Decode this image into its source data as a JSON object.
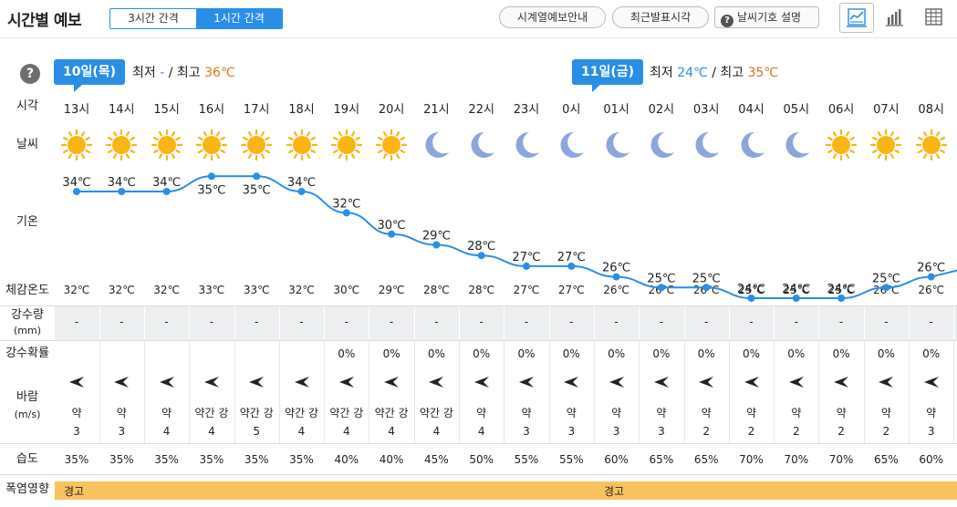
{
  "header": {
    "title": "시간별 예보",
    "interval_3h": "3시간 간격",
    "interval_1h": "1시간 간격",
    "btn_series": "시계열예보안내",
    "btn_recent": "최근발표시각",
    "btn_legend": "날씨기호 설명",
    "active_view": "chart"
  },
  "days": [
    {
      "tag": "10일(목)",
      "min_label": "최저",
      "min": "-",
      "sep": "/",
      "max_label": "최고",
      "max": "36℃"
    },
    {
      "tag": "11일(금)",
      "min_label": "최저",
      "min": "24℃",
      "sep": "/",
      "max_label": "최고",
      "max": "35℃"
    }
  ],
  "row_labels": {
    "time": "시각",
    "weather": "날씨",
    "temp": "기온",
    "feels": "체감온도",
    "rain_amount": "강수량",
    "rain_unit": "(mm)",
    "rain_prob": "강수확률",
    "wind": "바람",
    "wind_unit": "(m/s)",
    "humidity": "습도",
    "heat": "폭염영향"
  },
  "hours": [
    "13시",
    "14시",
    "15시",
    "16시",
    "17시",
    "18시",
    "19시",
    "20시",
    "21시",
    "22시",
    "23시",
    "0시",
    "01시",
    "02시",
    "03시",
    "04시",
    "05시",
    "06시",
    "07시",
    "08시"
  ],
  "weather": [
    "sun",
    "sun",
    "sun",
    "sun",
    "sun",
    "sun",
    "sun",
    "sun",
    "moon",
    "moon",
    "moon",
    "moon",
    "moon",
    "moon",
    "moon",
    "moon",
    "moon",
    "sun",
    "sun",
    "sun"
  ],
  "temps": [
    "34℃",
    "34℃",
    "34℃",
    "35℃",
    "35℃",
    "34℃",
    "32℃",
    "30℃",
    "29℃",
    "28℃",
    "27℃",
    "27℃",
    "26℃",
    "25℃",
    "25℃",
    "24℃",
    "24℃",
    "24℃",
    "25℃",
    "26℃"
  ],
  "temp_values": [
    34,
    34,
    34,
    35,
    35,
    34,
    32,
    30,
    29,
    28,
    27,
    27,
    26,
    25,
    25,
    24,
    24,
    24,
    25,
    26
  ],
  "feels": [
    "32℃",
    "32℃",
    "32℃",
    "33℃",
    "33℃",
    "32℃",
    "30℃",
    "29℃",
    "28℃",
    "28℃",
    "27℃",
    "27℃",
    "26℃",
    "26℃",
    "26℃",
    "25℃",
    "25℃",
    "25℃",
    "26℃",
    "26℃"
  ],
  "rain_amount": [
    "-",
    "-",
    "-",
    "-",
    "-",
    "-",
    "-",
    "-",
    "-",
    "-",
    "-",
    "-",
    "-",
    "-",
    "-",
    "-",
    "-",
    "-",
    "-",
    "-"
  ],
  "rain_prob": [
    "",
    "",
    "",
    "",
    "",
    "",
    "0%",
    "0%",
    "0%",
    "0%",
    "0%",
    "0%",
    "0%",
    "0%",
    "0%",
    "0%",
    "0%",
    "0%",
    "0%",
    "0%"
  ],
  "wind_dir": [
    "W",
    "W",
    "W",
    "W",
    "W",
    "W",
    "W",
    "W",
    "W",
    "W",
    "W",
    "W",
    "W",
    "W",
    "W",
    "W",
    "W",
    "W",
    "W",
    "W"
  ],
  "wind_desc": [
    "약",
    "약",
    "약",
    "약간 강",
    "약간 강",
    "약간 강",
    "약간 강",
    "약간 강",
    "약간 강",
    "약",
    "약",
    "약",
    "약",
    "약",
    "약",
    "약",
    "약",
    "약",
    "약",
    "약"
  ],
  "wind_speed": [
    "3",
    "3",
    "4",
    "4",
    "5",
    "4",
    "4",
    "4",
    "4",
    "4",
    "3",
    "3",
    "3",
    "3",
    "2",
    "2",
    "2",
    "2",
    "2",
    "3"
  ],
  "humidity": [
    "35%",
    "35%",
    "35%",
    "35%",
    "35%",
    "35%",
    "40%",
    "40%",
    "45%",
    "50%",
    "55%",
    "55%",
    "60%",
    "65%",
    "65%",
    "70%",
    "70%",
    "70%",
    "65%",
    "60%"
  ],
  "heat": [
    {
      "label": "경고"
    },
    {
      "label": "경고"
    }
  ],
  "colors": {
    "accent": "#2a8ee6",
    "sun": "#f9b612",
    "moon": "#8ca6dd",
    "heat": "#f8c35f",
    "max": "#d9771d"
  }
}
